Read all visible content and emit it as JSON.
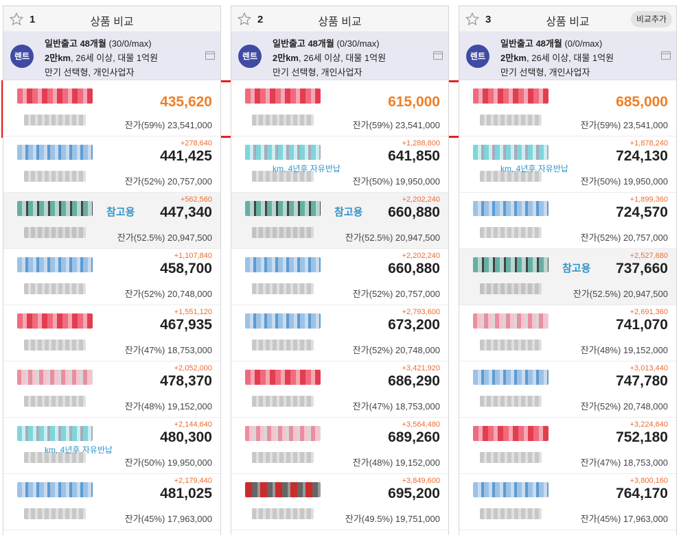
{
  "columns": [
    {
      "index": "1",
      "title": "상품 비교",
      "add_label": "",
      "badge": "렌트",
      "cond1_bold": "일반출고 48개월",
      "cond1_rest": " (30/0/max)",
      "cond2_bold": "2만km",
      "cond2_rest": ", 26세 이상, 대물 1억원",
      "cond3": "만기 선택형, 개인사업자",
      "rows": [
        {
          "logo": "lg-red",
          "diff": "",
          "price": "435,620",
          "residual": "잔가(59%) 23,541,000",
          "note": "",
          "ref": "",
          "first": true
        },
        {
          "logo": "lg-blue",
          "diff": "+278,640",
          "price": "441,425",
          "residual": "잔가(52%) 20,757,000",
          "note": "",
          "ref": ""
        },
        {
          "logo": "lg-green",
          "diff": "+562,560",
          "price": "447,340",
          "residual": "잔가(52.5%) 20,947,500",
          "note": "",
          "ref": "참고용",
          "isref": true
        },
        {
          "logo": "lg-blue",
          "diff": "+1,107,840",
          "price": "458,700",
          "residual": "잔가(52%) 20,748,000",
          "note": "",
          "ref": ""
        },
        {
          "logo": "lg-red",
          "diff": "+1,551,120",
          "price": "467,935",
          "residual": "잔가(47%) 18,753,000",
          "note": "",
          "ref": ""
        },
        {
          "logo": "lg-pink",
          "diff": "+2,052,000",
          "price": "478,370",
          "residual": "잔가(48%) 19,152,000",
          "note": "",
          "ref": ""
        },
        {
          "logo": "lg-cyan",
          "diff": "+2,144,640",
          "price": "480,300",
          "residual": "잔가(50%) 19,950,000",
          "note": "km, 4년후 자유반납",
          "ref": ""
        },
        {
          "logo": "lg-blue",
          "diff": "+2,179,440",
          "price": "481,025",
          "residual": "잔가(45%) 17,963,000",
          "note": "",
          "ref": ""
        }
      ]
    },
    {
      "index": "2",
      "title": "상품 비교",
      "add_label": "",
      "badge": "렌트",
      "cond1_bold": "일반출고 48개월",
      "cond1_rest": " (0/30/max)",
      "cond2_bold": "2만km",
      "cond2_rest": ", 26세 이상, 대물 1억원",
      "cond3": "만기 선택형, 개인사업자",
      "rows": [
        {
          "logo": "lg-red",
          "diff": "",
          "price": "615,000",
          "residual": "잔가(59%) 23,541,000",
          "note": "",
          "ref": "",
          "first": true
        },
        {
          "logo": "lg-cyan",
          "diff": "+1,288,800",
          "price": "641,850",
          "residual": "잔가(50%) 19,950,000",
          "note": "km, 4년후 자유반납",
          "ref": ""
        },
        {
          "logo": "lg-green",
          "diff": "+2,202,240",
          "price": "660,880",
          "residual": "잔가(52.5%) 20,947,500",
          "note": "",
          "ref": "참고용",
          "isref": true
        },
        {
          "logo": "lg-blue",
          "diff": "+2,202,240",
          "price": "660,880",
          "residual": "잔가(52%) 20,757,000",
          "note": "",
          "ref": ""
        },
        {
          "logo": "lg-blue",
          "diff": "+2,793,600",
          "price": "673,200",
          "residual": "잔가(52%) 20,748,000",
          "note": "",
          "ref": ""
        },
        {
          "logo": "lg-red",
          "diff": "+3,421,920",
          "price": "686,290",
          "residual": "잔가(47%) 18,753,000",
          "note": "",
          "ref": ""
        },
        {
          "logo": "lg-pink",
          "diff": "+3,564,480",
          "price": "689,260",
          "residual": "잔가(48%) 19,152,000",
          "note": "",
          "ref": ""
        },
        {
          "logo": "lg-dark",
          "diff": "+3,849,600",
          "price": "695,200",
          "residual": "잔가(49.5%) 19,751,000",
          "note": "",
          "ref": ""
        }
      ]
    },
    {
      "index": "3",
      "title": "상품 비교",
      "add_label": "비교추가",
      "badge": "렌트",
      "cond1_bold": "일반출고 48개월",
      "cond1_rest": " (0/0/max)",
      "cond2_bold": "2만km",
      "cond2_rest": ", 26세 이상, 대물 1억원",
      "cond3": "만기 선택형, 개인사업자",
      "rows": [
        {
          "logo": "lg-red",
          "diff": "",
          "price": "685,000",
          "residual": "잔가(59%) 23,541,000",
          "note": "",
          "ref": "",
          "first": true
        },
        {
          "logo": "lg-cyan",
          "diff": "+1,878,240",
          "price": "724,130",
          "residual": "잔가(50%) 19,950,000",
          "note": "km, 4년후 자유반납",
          "ref": ""
        },
        {
          "logo": "lg-blue",
          "diff": "+1,899,360",
          "price": "724,570",
          "residual": "잔가(52%) 20,757,000",
          "note": "",
          "ref": ""
        },
        {
          "logo": "lg-green",
          "diff": "+2,527,680",
          "price": "737,660",
          "residual": "잔가(52.5%) 20,947,500",
          "note": "",
          "ref": "참고용",
          "isref": true
        },
        {
          "logo": "lg-pink",
          "diff": "+2,691,360",
          "price": "741,070",
          "residual": "잔가(48%) 19,152,000",
          "note": "",
          "ref": ""
        },
        {
          "logo": "lg-blue",
          "diff": "+3,013,440",
          "price": "747,780",
          "residual": "잔가(52%) 20,748,000",
          "note": "",
          "ref": ""
        },
        {
          "logo": "lg-red",
          "diff": "+3,224,640",
          "price": "752,180",
          "residual": "잔가(47%) 18,753,000",
          "note": "",
          "ref": ""
        },
        {
          "logo": "lg-blue",
          "diff": "+3,800,160",
          "price": "764,170",
          "residual": "잔가(45%) 17,963,000",
          "note": "",
          "ref": ""
        }
      ]
    }
  ]
}
